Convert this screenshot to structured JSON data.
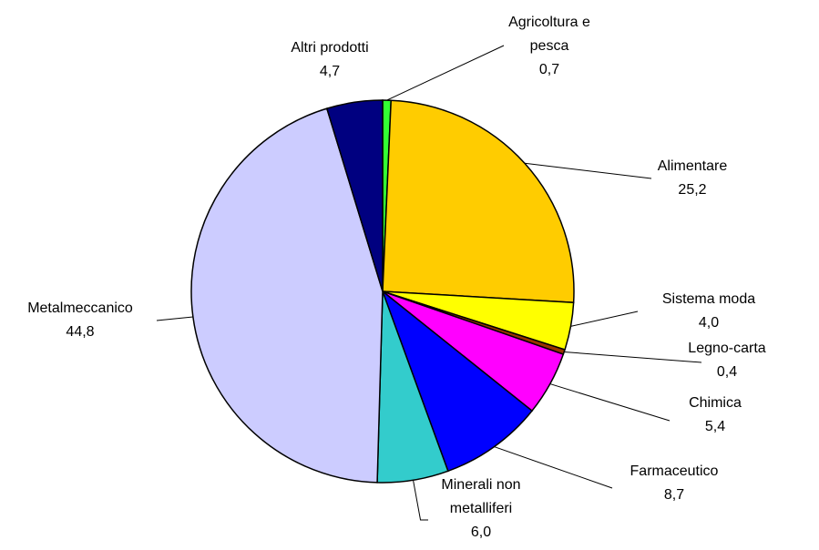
{
  "chart_data": {
    "type": "pie",
    "categories": [
      "Agricoltura e pesca",
      "Alimentare",
      "Sistema moda",
      "Legno-carta",
      "Chimica",
      "Farmaceutico",
      "Minerali non metalliferi",
      "Metalmeccanico",
      "Altri prodotti"
    ],
    "values": [
      0.7,
      25.2,
      4.0,
      0.4,
      5.4,
      8.7,
      6.0,
      44.8,
      4.7
    ],
    "value_labels": [
      "0,7",
      "25,2",
      "4,0",
      "0,4",
      "5,4",
      "8,7",
      "6,0",
      "44,8",
      "4,7"
    ],
    "colors": [
      "#33ff33",
      "#ffcc00",
      "#ffff00",
      "#993300",
      "#ff00ff",
      "#0000ff",
      "#33cccc",
      "#ccccff",
      "#000080"
    ]
  }
}
